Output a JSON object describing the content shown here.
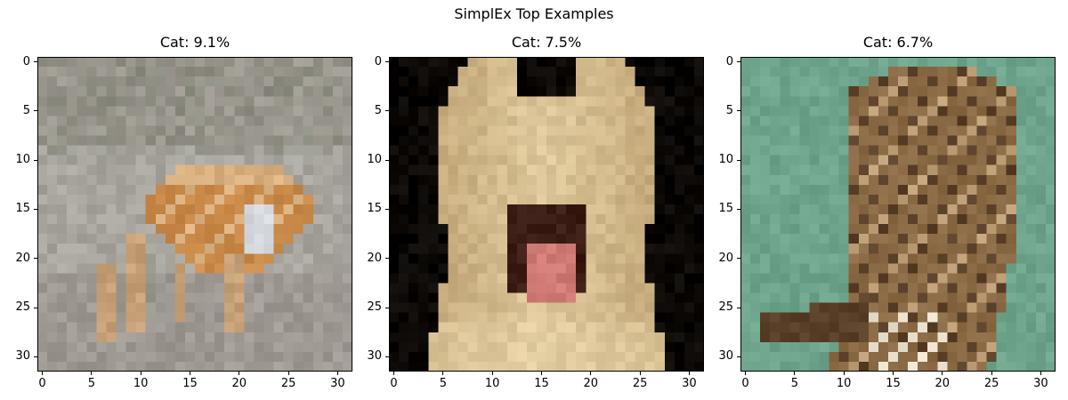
{
  "figure": {
    "title": "SimplEx Top Examples"
  },
  "chart_data": [
    {
      "type": "image",
      "title": "Cat: 9.1%",
      "x_ticks": [
        0,
        5,
        10,
        15,
        20,
        25,
        30
      ],
      "y_ticks": [
        0,
        5,
        10,
        15,
        20,
        25,
        30
      ],
      "xlim": [
        -0.5,
        31.5
      ],
      "ylim": [
        31.5,
        -0.5
      ],
      "image_size": [
        32,
        32
      ],
      "palette": {
        "background": "#9a968f",
        "light": "#c2c0bb",
        "subject": "#c98a4a",
        "subject_light": "#e4c9a4",
        "accent": "#d4d8dc"
      }
    },
    {
      "type": "image",
      "title": "Cat: 7.5%",
      "x_ticks": [
        0,
        5,
        10,
        15,
        20,
        25,
        30
      ],
      "y_ticks": [
        0,
        5,
        10,
        15,
        20,
        25,
        30
      ],
      "xlim": [
        -0.5,
        31.5
      ],
      "ylim": [
        31.5,
        -0.5
      ],
      "image_size": [
        32,
        32
      ],
      "palette": {
        "background": "#0a0704",
        "subject": "#b79a6a",
        "subject_light": "#e8d4a8",
        "mouth": "#3a1c14",
        "tongue": "#d07a76"
      }
    },
    {
      "type": "image",
      "title": "Cat: 6.7%",
      "x_ticks": [
        0,
        5,
        10,
        15,
        20,
        25,
        30
      ],
      "y_ticks": [
        0,
        5,
        10,
        15,
        20,
        25,
        30
      ],
      "xlim": [
        -0.5,
        31.5
      ],
      "ylim": [
        31.5,
        -0.5
      ],
      "image_size": [
        32,
        32
      ],
      "palette": {
        "background": "#6ea48c",
        "subject": "#8a6a44",
        "subject_dark": "#5a4028",
        "subject_light": "#c0a078",
        "accent": "#e8e0cc"
      }
    }
  ]
}
